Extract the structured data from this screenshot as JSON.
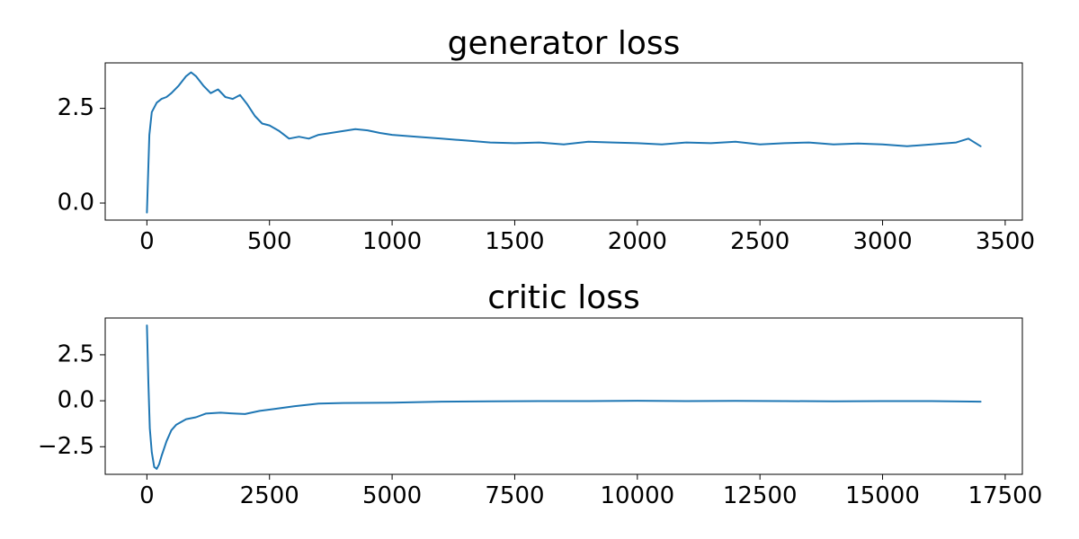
{
  "chart_data": [
    {
      "type": "line",
      "title": "generator loss",
      "xlabel": "",
      "ylabel": "",
      "xlim": [
        -170,
        3570
      ],
      "ylim": [
        -0.45,
        3.7
      ],
      "xticks": [
        0,
        500,
        1000,
        1500,
        2000,
        2500,
        3000,
        3500
      ],
      "xtick_labels": [
        "0",
        "500",
        "1000",
        "1500",
        "2000",
        "2500",
        "3000",
        "3500"
      ],
      "yticks": [
        0.0,
        2.5
      ],
      "ytick_labels": [
        "0.0",
        "2.5"
      ],
      "grid": false,
      "color": "#1f77b4",
      "series": [
        {
          "x": [
            0,
            10,
            20,
            40,
            60,
            80,
            100,
            130,
            160,
            180,
            200,
            230,
            260,
            290,
            320,
            350,
            380,
            410,
            440,
            470,
            500,
            540,
            580,
            620,
            660,
            700,
            750,
            800,
            850,
            900,
            950,
            1000,
            1100,
            1200,
            1300,
            1400,
            1500,
            1600,
            1700,
            1800,
            1900,
            2000,
            2100,
            2200,
            2300,
            2400,
            2500,
            2600,
            2700,
            2800,
            2900,
            3000,
            3100,
            3200,
            3300,
            3350,
            3400
          ],
          "y": [
            -0.25,
            1.8,
            2.4,
            2.65,
            2.75,
            2.8,
            2.9,
            3.1,
            3.35,
            3.45,
            3.35,
            3.1,
            2.9,
            3.0,
            2.8,
            2.75,
            2.85,
            2.6,
            2.3,
            2.1,
            2.05,
            1.9,
            1.7,
            1.75,
            1.7,
            1.8,
            1.85,
            1.9,
            1.95,
            1.92,
            1.85,
            1.8,
            1.75,
            1.7,
            1.65,
            1.6,
            1.58,
            1.6,
            1.55,
            1.62,
            1.6,
            1.58,
            1.55,
            1.6,
            1.58,
            1.62,
            1.55,
            1.58,
            1.6,
            1.55,
            1.57,
            1.55,
            1.5,
            1.55,
            1.6,
            1.7,
            1.5
          ]
        }
      ]
    },
    {
      "type": "line",
      "title": "critic loss",
      "xlabel": "",
      "ylabel": "",
      "xlim": [
        -850,
        17850
      ],
      "ylim": [
        -4.0,
        4.5
      ],
      "xticks": [
        0,
        2500,
        5000,
        7500,
        10000,
        12500,
        15000,
        17500
      ],
      "xtick_labels": [
        "0",
        "2500",
        "5000",
        "7500",
        "10000",
        "12500",
        "15000",
        "17500"
      ],
      "yticks": [
        -2.5,
        0.0,
        2.5
      ],
      "ytick_labels": [
        "−2.5",
        "0.0",
        "2.5"
      ],
      "grid": false,
      "color": "#1f77b4",
      "series": [
        {
          "x": [
            0,
            30,
            60,
            100,
            150,
            200,
            250,
            300,
            400,
            500,
            600,
            800,
            1000,
            1200,
            1500,
            1800,
            2000,
            2300,
            2600,
            3000,
            3500,
            4000,
            5000,
            6000,
            7000,
            8000,
            9000,
            10000,
            11000,
            12000,
            13000,
            14000,
            15000,
            16000,
            17000
          ],
          "y": [
            4.1,
            1.0,
            -1.5,
            -2.8,
            -3.6,
            -3.7,
            -3.45,
            -3.0,
            -2.2,
            -1.6,
            -1.3,
            -1.0,
            -0.9,
            -0.7,
            -0.65,
            -0.7,
            -0.72,
            -0.55,
            -0.45,
            -0.3,
            -0.15,
            -0.12,
            -0.1,
            -0.05,
            -0.03,
            -0.02,
            -0.02,
            0.0,
            -0.02,
            -0.01,
            -0.02,
            -0.03,
            -0.02,
            -0.02,
            -0.05
          ]
        }
      ]
    }
  ]
}
